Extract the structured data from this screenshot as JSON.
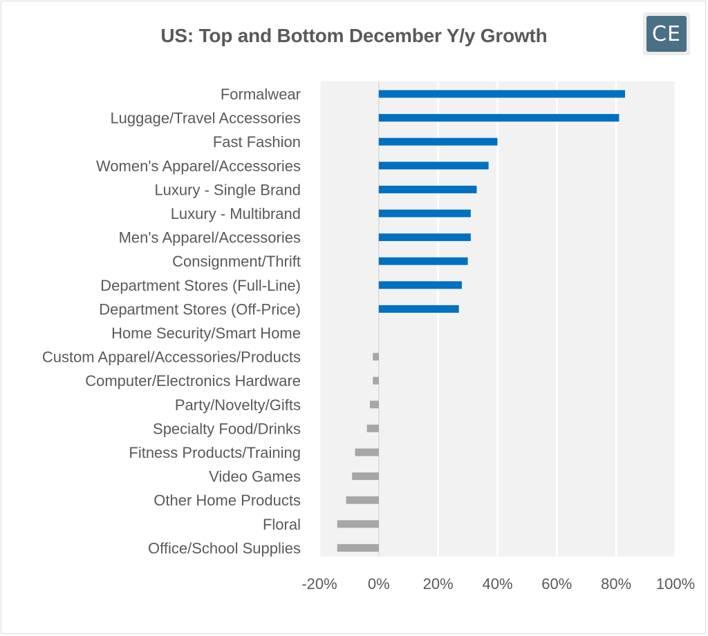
{
  "header": {
    "title": "US:  Top and Bottom December Y/y Growth",
    "logo_text": "CE"
  },
  "colors": {
    "positive": "#0070c0",
    "negative": "#a6a6a6",
    "plot_background": "#f2f2f2",
    "gridline": "#ffffff",
    "text": "#595959"
  },
  "chart_data": {
    "type": "bar",
    "orientation": "horizontal",
    "title": "US:  Top and Bottom December Y/y Growth",
    "categories": [
      "Formalwear",
      "Luggage/Travel Accessories",
      "Fast Fashion",
      "Women's Apparel/Accessories",
      "Luxury - Single Brand",
      "Luxury - Multibrand",
      "Men's Apparel/Accessories",
      "Consignment/Thrift",
      "Department Stores (Full-Line)",
      "Department Stores (Off-Price)",
      "Home Security/Smart Home",
      "Custom Apparel/Accessories/Products",
      "Computer/Electronics Hardware",
      "Party/Novelty/Gifts",
      "Specialty Food/Drinks",
      "Fitness Products/Training",
      "Video Games",
      "Other Home Products",
      "Floral",
      "Office/School Supplies"
    ],
    "values": [
      83,
      81,
      40,
      37,
      33,
      31,
      31,
      30,
      28,
      27,
      0,
      -2,
      -2,
      -3,
      -4,
      -8,
      -9,
      -11,
      -14,
      -14
    ],
    "xlim": [
      -20,
      100
    ],
    "xticks": [
      -20,
      0,
      20,
      40,
      60,
      80,
      100
    ],
    "tick_labels": [
      "-20%",
      "0%",
      "20%",
      "40%",
      "60%",
      "80%",
      "100%"
    ],
    "xlabel": "",
    "ylabel": "",
    "grid": true,
    "legend": "none"
  }
}
